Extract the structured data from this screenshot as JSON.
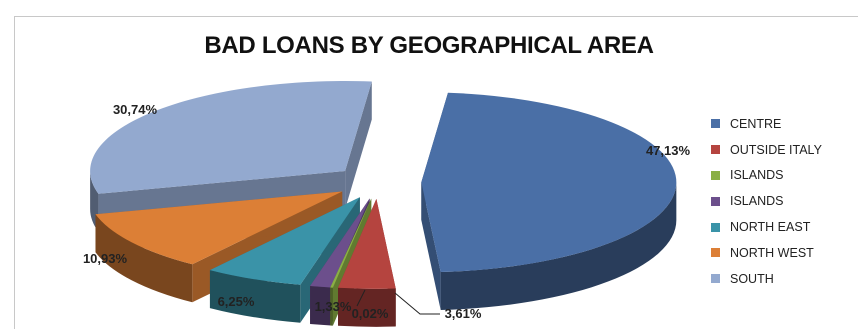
{
  "chart_data": {
    "type": "pie",
    "style": "3d-exploded",
    "title": "BAD LOANS BY GEOGRAPHICAL AREA",
    "legend_position": "right",
    "slices": [
      {
        "label": "CENTRE",
        "value": 47.13,
        "data_label": "47,13%",
        "color": "#4a6fa6"
      },
      {
        "label": "OUTSIDE ITALY",
        "value": 3.61,
        "data_label": "3,61%",
        "color": "#b5443f"
      },
      {
        "label": "ISLANDS",
        "value": 0.02,
        "data_label": "0,02%",
        "color": "#8aaf45"
      },
      {
        "label": "ISLANDS",
        "value": 1.33,
        "data_label": "1,33%",
        "color": "#6c4f8c"
      },
      {
        "label": "NORTH EAST",
        "value": 6.25,
        "data_label": "6,25%",
        "color": "#3a93a8"
      },
      {
        "label": "NORTH WEST",
        "value": 10.93,
        "data_label": "10,93%",
        "color": "#dc7f36"
      },
      {
        "label": "SOUTH",
        "value": 30.74,
        "data_label": "30,74%",
        "color": "#93a9cf"
      }
    ]
  }
}
